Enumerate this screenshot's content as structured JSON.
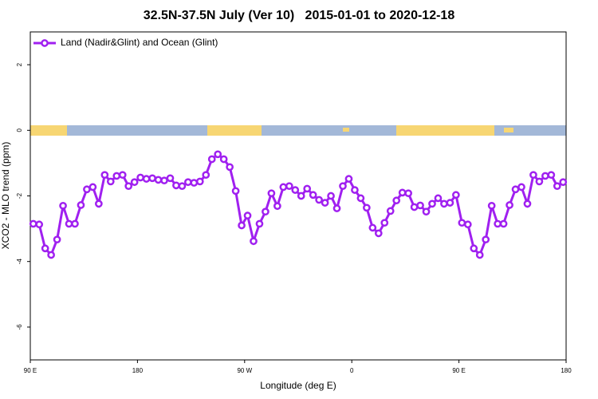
{
  "chart_data": {
    "type": "line",
    "title": "32.5N-37.5N July (Ver 10)   2015-01-01 to 2020-12-18",
    "xlabel": "Longitude (deg E)",
    "ylabel": "XCO2 - MLO trend (ppm)",
    "x": [
      92.5,
      97.5,
      102.5,
      107.5,
      112.5,
      117.5,
      122.5,
      127.5,
      132.5,
      137.5,
      142.5,
      147.5,
      152.5,
      157.5,
      162.5,
      167.5,
      172.5,
      177.5,
      182.5,
      187.5,
      192.5,
      197.5,
      202.5,
      207.5,
      212.5,
      217.5,
      222.5,
      227.5,
      232.5,
      237.5,
      242.5,
      247.5,
      252.5,
      257.5,
      262.5,
      267.5,
      272.5,
      277.5,
      282.5,
      287.5,
      292.5,
      297.5,
      302.5,
      307.5,
      312.5,
      317.5,
      322.5,
      327.5,
      332.5,
      337.5,
      342.5,
      347.5,
      352.5,
      357.5,
      362.5,
      367.5,
      372.5,
      377.5,
      382.5,
      387.5,
      392.5,
      397.5,
      402.5,
      407.5,
      412.5,
      417.5,
      422.5,
      427.5,
      432.5,
      437.5,
      442.5,
      447.5,
      452.5,
      457.5,
      462.5,
      467.5,
      472.5,
      477.5,
      482.5,
      487.5,
      492.5,
      497.5,
      502.5,
      507.5,
      512.5,
      517.5,
      522.5,
      527.5,
      532.5,
      537.5
    ],
    "series": [
      {
        "name": "Land (Nadir&Glint) and Ocean (Glint)",
        "color": "#a020f0",
        "values": [
          -2.85,
          -2.87,
          -3.6,
          -3.8,
          -3.33,
          -2.3,
          -2.85,
          -2.85,
          -2.28,
          -1.8,
          -1.73,
          -2.24,
          -1.36,
          -1.56,
          -1.39,
          -1.36,
          -1.7,
          -1.58,
          -1.44,
          -1.48,
          -1.46,
          -1.51,
          -1.53,
          -1.46,
          -1.68,
          -1.7,
          -1.58,
          -1.6,
          -1.56,
          -1.36,
          -0.88,
          -0.73,
          -0.88,
          -1.12,
          -1.85,
          -2.9,
          -2.6,
          -3.38,
          -2.85,
          -2.48,
          -1.92,
          -2.31,
          -1.73,
          -1.7,
          -1.82,
          -2.0,
          -1.78,
          -1.97,
          -2.12,
          -2.21,
          -2.0,
          -2.38,
          -1.7,
          -1.48,
          -1.82,
          -2.07,
          -2.36,
          -2.97,
          -3.14,
          -2.82,
          -2.46,
          -2.14,
          -1.9,
          -1.92,
          -2.34,
          -2.29,
          -2.48,
          -2.24,
          -2.07,
          -2.24,
          -2.21,
          -1.97,
          -2.82,
          -2.87,
          -3.6,
          -3.8,
          -3.33,
          -2.3,
          -2.85,
          -2.85,
          -2.28,
          -1.8,
          -1.73,
          -2.24,
          -1.36,
          -1.56,
          -1.39,
          -1.36,
          -1.7,
          -1.58
        ]
      }
    ],
    "xlim": [
      90,
      540
    ],
    "xticks": [
      {
        "value": 90,
        "label": "90 E"
      },
      180,
      {
        "value": 270,
        "label": "90 W"
      },
      {
        "value": 360,
        "label": "0"
      },
      {
        "value": 450,
        "label": "90 E"
      },
      180
    ],
    "ylim": [
      -7,
      3
    ],
    "yticks": [
      2,
      0,
      -2,
      -4,
      -6
    ],
    "legend": "top-left"
  }
}
